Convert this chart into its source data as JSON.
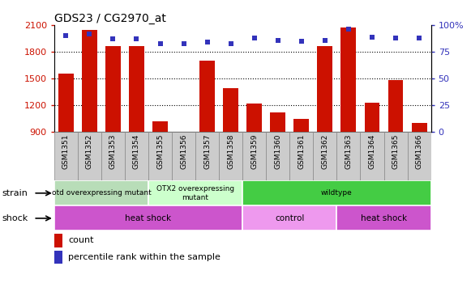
{
  "title": "GDS23 / CG2970_at",
  "samples": [
    "GSM1351",
    "GSM1352",
    "GSM1353",
    "GSM1354",
    "GSM1355",
    "GSM1356",
    "GSM1357",
    "GSM1358",
    "GSM1359",
    "GSM1360",
    "GSM1361",
    "GSM1362",
    "GSM1363",
    "GSM1364",
    "GSM1365",
    "GSM1366"
  ],
  "counts": [
    1550,
    2050,
    1860,
    1860,
    1020,
    850,
    1700,
    1390,
    1220,
    1120,
    1040,
    1860,
    2070,
    1230,
    1480,
    1000
  ],
  "percentiles": [
    90,
    92,
    87,
    87,
    83,
    83,
    84,
    83,
    88,
    86,
    85,
    86,
    96,
    89,
    88,
    88
  ],
  "ylim_left": [
    900,
    2100
  ],
  "ylim_right": [
    0,
    100
  ],
  "yticks_left": [
    900,
    1200,
    1500,
    1800,
    2100
  ],
  "yticks_right": [
    0,
    25,
    50,
    75,
    100
  ],
  "ytick_labels_right": [
    "0",
    "25",
    "50",
    "75",
    "100%"
  ],
  "bar_color": "#CC1100",
  "dot_color": "#3333BB",
  "grid_lines": [
    1200,
    1500,
    1800
  ],
  "strain_groups": [
    {
      "label": "otd overexpressing mutant",
      "start": 0,
      "end": 4,
      "color": "#b8ddb8"
    },
    {
      "label": "OTX2 overexpressing\nmutant",
      "start": 4,
      "end": 8,
      "color": "#ccffcc"
    },
    {
      "label": "wildtype",
      "start": 8,
      "end": 16,
      "color": "#44cc44"
    }
  ],
  "shock_groups": [
    {
      "label": "heat shock",
      "start": 0,
      "end": 8,
      "color": "#cc55cc"
    },
    {
      "label": "control",
      "start": 8,
      "end": 12,
      "color": "#ee99ee"
    },
    {
      "label": "heat shock",
      "start": 12,
      "end": 16,
      "color": "#cc55cc"
    }
  ],
  "legend_count_label": "count",
  "legend_pct_label": "percentile rank within the sample",
  "label_strain": "strain",
  "label_shock": "shock",
  "tick_bg_color": "#cccccc",
  "tick_border_color": "#888888"
}
